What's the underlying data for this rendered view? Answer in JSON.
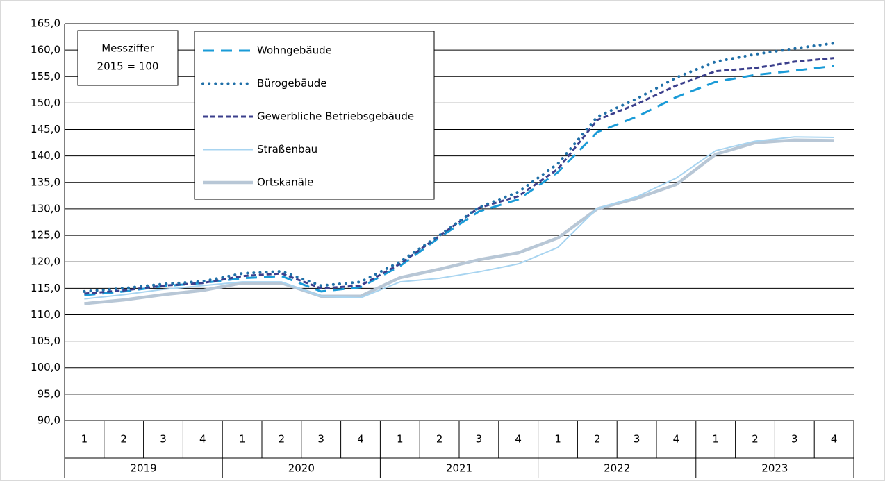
{
  "chart_data": {
    "type": "line",
    "categories": [
      "1",
      "2",
      "3",
      "4",
      "1",
      "2",
      "3",
      "4",
      "1",
      "2",
      "3",
      "4",
      "1",
      "2",
      "3",
      "4",
      "1",
      "2",
      "3",
      "4"
    ],
    "year_groups": [
      "2019",
      "2020",
      "2021",
      "2022",
      "2023"
    ],
    "ylim": [
      90,
      165
    ],
    "yticks": [
      {
        "value": 90,
        "label": "90,0"
      },
      {
        "value": 95,
        "label": "95,0"
      },
      {
        "value": 100,
        "label": "100,0"
      },
      {
        "value": 105,
        "label": "105,0"
      },
      {
        "value": 110,
        "label": "110,0"
      },
      {
        "value": 115,
        "label": "115,0"
      },
      {
        "value": 120,
        "label": "120,0"
      },
      {
        "value": 125,
        "label": "125,0"
      },
      {
        "value": 130,
        "label": "130,0"
      },
      {
        "value": 135,
        "label": "135,0"
      },
      {
        "value": 140,
        "label": "140,0"
      },
      {
        "value": 145,
        "label": "145,0"
      },
      {
        "value": 150,
        "label": "150,0"
      },
      {
        "value": 155,
        "label": "155,0"
      },
      {
        "value": 160,
        "label": "160,0"
      },
      {
        "value": 165,
        "label": "165,0"
      }
    ],
    "grid": true,
    "annotation": [
      "Messziffer",
      "2015 = 100"
    ],
    "series": [
      {
        "name": "Wohngebäude",
        "color": "#1a9bd7",
        "style": "dashed",
        "width": 3,
        "values": [
          113.7,
          114.4,
          115.4,
          116.0,
          116.9,
          117.3,
          114.4,
          115.2,
          119.2,
          124.6,
          129.5,
          131.8,
          136.9,
          144.5,
          147.4,
          151.1,
          154.0,
          155.3,
          156.1,
          157.0
        ]
      },
      {
        "name": "Bürogebäude",
        "color": "#1f6fa8",
        "style": "dotted",
        "width": 4,
        "values": [
          114.4,
          115.0,
          115.8,
          116.3,
          117.8,
          118.2,
          115.5,
          116.2,
          120.0,
          125.0,
          130.3,
          133.2,
          138.5,
          147.4,
          150.8,
          154.8,
          157.8,
          159.2,
          160.3,
          161.3
        ]
      },
      {
        "name": "Gewerbliche Betriebsgebäude",
        "color": "#3b3f8c",
        "style": "short-dashed",
        "width": 3,
        "values": [
          114.0,
          114.6,
          115.5,
          116.0,
          117.3,
          117.8,
          115.0,
          115.5,
          119.6,
          124.9,
          130.2,
          132.4,
          137.5,
          146.8,
          149.8,
          153.3,
          156.0,
          156.6,
          157.8,
          158.5
        ]
      },
      {
        "name": "Straßenbau",
        "color": "#a8d4f0",
        "style": "solid",
        "width": 2,
        "values": [
          113.0,
          113.8,
          114.8,
          115.5,
          116.2,
          116.2,
          113.5,
          113.2,
          116.2,
          116.9,
          118.1,
          119.6,
          122.7,
          130.1,
          132.3,
          135.8,
          141.0,
          142.8,
          143.6,
          143.5
        ]
      },
      {
        "name": "Ortskanäle",
        "color": "#b8c7d6",
        "style": "solid",
        "width": 4.5,
        "values": [
          112.1,
          112.8,
          113.8,
          114.6,
          116.0,
          116.0,
          113.5,
          113.5,
          117.0,
          118.6,
          120.4,
          121.7,
          124.5,
          130.0,
          132.0,
          134.6,
          140.3,
          142.5,
          143.0,
          142.9
        ]
      }
    ]
  }
}
